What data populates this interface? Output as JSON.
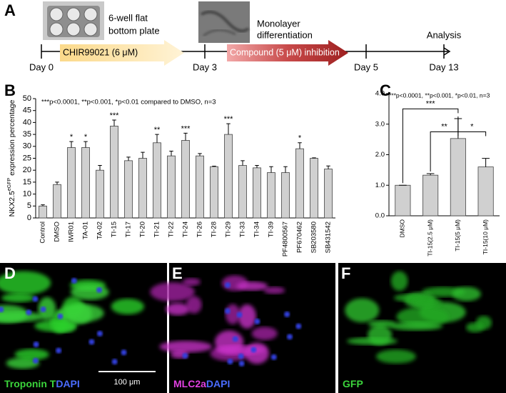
{
  "panel_letters": [
    "A",
    "B",
    "C",
    "D",
    "E",
    "F"
  ],
  "panel_a": {
    "days": [
      "Day 0",
      "Day 3",
      "Day 5",
      "Day 13"
    ],
    "plate_label": [
      "6-well flat",
      "bottom plate"
    ],
    "monolayer_label": [
      "Monolayer",
      "differentiation"
    ],
    "analysis": "Analysis",
    "treatments": [
      "CHIR99021 (6 μM)",
      "Compound (5 μM) inhibition"
    ]
  },
  "chart_data": [
    {
      "type": "bar",
      "note": "***p<0.0001, **p<0.001, *p<0.01 compared to DMSO, n=3",
      "ylabel": "NKX2.5",
      "ylabel_sup": "eGFP",
      "ylabel_suffix": " expression percentage",
      "categories": [
        "Control",
        "DMSO",
        "IWR01",
        "TA-01",
        "TA-02",
        "TI-15",
        "TI-17",
        "TI-20",
        "TI-21",
        "TI-22",
        "TI-24",
        "TI-26",
        "TI-28",
        "TI-29",
        "TI-33",
        "TI-34",
        "TI-39",
        "PF4800567",
        "PF670462",
        "SB203580",
        "SB431542"
      ],
      "values": [
        5,
        14,
        29.5,
        29.5,
        20,
        38.5,
        24,
        25,
        31.5,
        26,
        32.5,
        26,
        21.5,
        35,
        22,
        21,
        19,
        19,
        29,
        25,
        20.5
      ],
      "errors": [
        0.5,
        1,
        2.5,
        2.5,
        2,
        2.5,
        1.5,
        2.5,
        3.5,
        2,
        3,
        1,
        0.2,
        4.5,
        2,
        1,
        2.5,
        2.5,
        2.5,
        0.2,
        1.3
      ],
      "significance": [
        null,
        null,
        "*",
        "*",
        null,
        "***",
        null,
        null,
        "**",
        null,
        "***",
        null,
        null,
        "***",
        null,
        null,
        null,
        null,
        "*",
        null,
        null
      ],
      "color": "#d0d0d0",
      "ylim": [
        0,
        50
      ],
      "yticks": [
        0,
        5,
        10,
        15,
        20,
        25,
        30,
        35,
        40,
        45,
        50
      ]
    },
    {
      "type": "bar",
      "note": "***p<0.0001, **p<0.001, *p<0.01, n=3",
      "categories": [
        "DMSO",
        "TI-15(2.5 μM)",
        "TI-15(5 μM)",
        "TI-15(10 μM)"
      ],
      "values": [
        1.0,
        1.33,
        2.53,
        1.6
      ],
      "errors": [
        0,
        0.05,
        0.65,
        0.28
      ],
      "comparisons": [
        {
          "label": "***",
          "from": "DMSO",
          "to": "TI-15(5 μM)"
        },
        {
          "label": "**",
          "from": "TI-15(2.5 μM)",
          "to": "TI-15(5 μM)"
        },
        {
          "label": "*",
          "from": "TI-15(5 μM)",
          "to": "TI-15(10 μM)"
        }
      ],
      "color": "#d0d0d0",
      "ylim": [
        0,
        4
      ],
      "yticks": [
        {
          "value": 0,
          "label": "0.0"
        },
        {
          "value": 1,
          "label": "1.0"
        },
        {
          "value": 2,
          "label": "2.0"
        },
        {
          "value": 3,
          "label": "3.0"
        },
        {
          "value": 4,
          "label": "4.0"
        }
      ]
    }
  ],
  "micrographs": [
    {
      "stains": [
        "Troponin T",
        "DAPI"
      ],
      "scale_bar": "100 μm"
    },
    {
      "stains": [
        "MLC2a",
        "DAPI"
      ]
    },
    {
      "stains": [
        "GFP"
      ]
    }
  ]
}
